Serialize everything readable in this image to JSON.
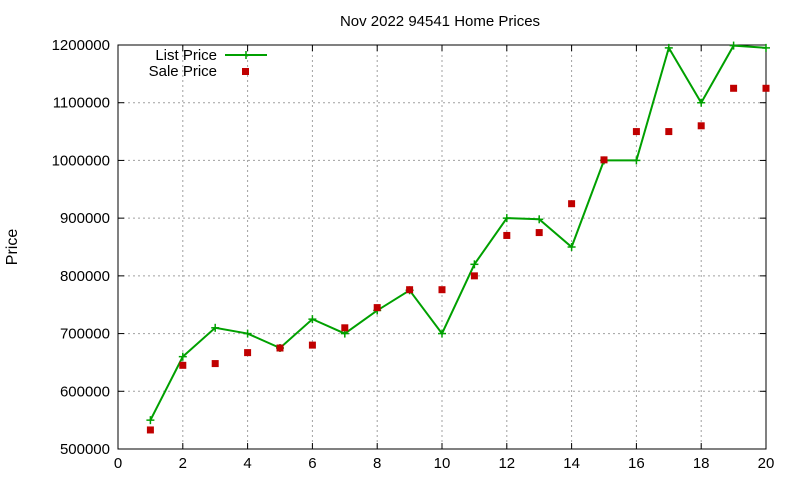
{
  "chart_data": {
    "type": "line",
    "title": "Nov 2022 94541 Home Prices",
    "xlabel": "",
    "ylabel": "Price",
    "xlim": [
      0,
      20
    ],
    "ylim": [
      500000,
      1200000
    ],
    "xticks": [
      "0",
      "2",
      "4",
      "6",
      "8",
      "10",
      "12",
      "14",
      "16",
      "18",
      "20"
    ],
    "yticks": [
      "500000",
      "600000",
      "700000",
      "800000",
      "900000",
      "1000000",
      "1100000",
      "1200000"
    ],
    "grid": true,
    "legend_position": "top-left",
    "x": [
      1,
      2,
      3,
      4,
      5,
      6,
      7,
      8,
      9,
      10,
      11,
      12,
      13,
      14,
      15,
      16,
      17,
      18,
      19,
      20
    ],
    "series": [
      {
        "name": "List Price",
        "style": "line-with-plus-markers",
        "color": "#00a000",
        "values": [
          550000,
          660000,
          710000,
          700000,
          675000,
          725000,
          700000,
          740000,
          775000,
          700000,
          820000,
          900000,
          898000,
          850000,
          1000000,
          1000000,
          1195000,
          1100000,
          1199000,
          1195000
        ]
      },
      {
        "name": "Sale Price",
        "style": "square-markers",
        "color": "#c00000",
        "values": [
          533000,
          645000,
          648000,
          667000,
          675000,
          680000,
          710000,
          745000,
          776000,
          776000,
          800000,
          870000,
          875000,
          925000,
          1001000,
          1050000,
          1050000,
          1060000,
          1125000,
          1125000
        ]
      }
    ]
  }
}
